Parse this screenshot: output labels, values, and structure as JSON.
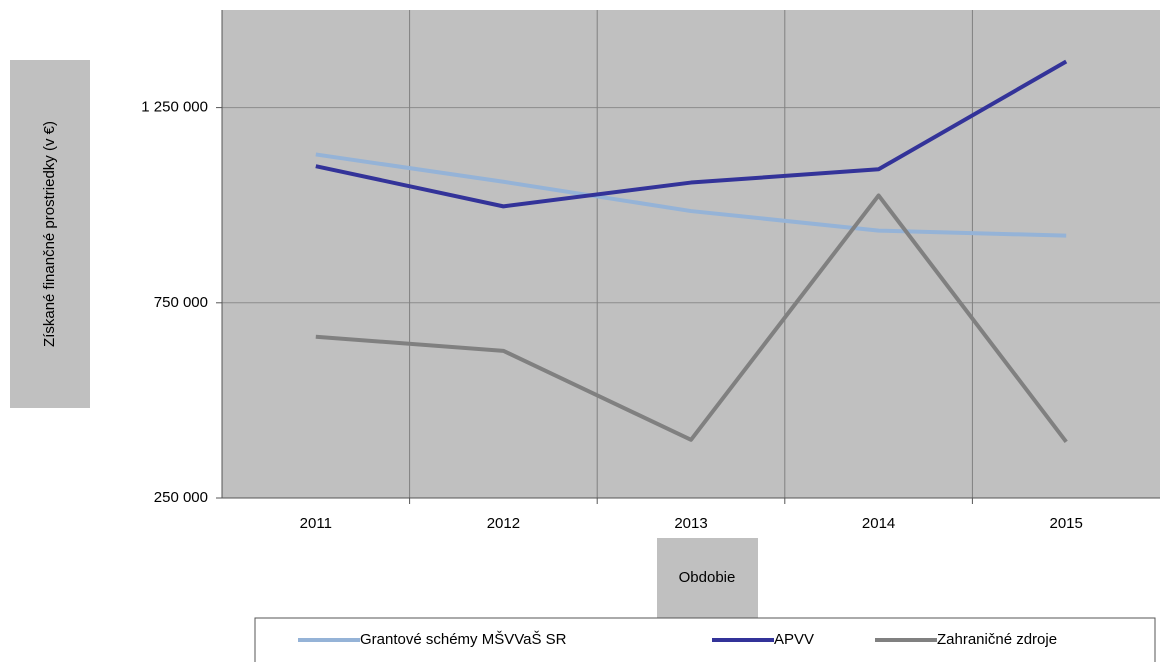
{
  "chart_data": {
    "type": "line",
    "y_label": "Získané  finančné  prostriedky  (v €)",
    "x_label": "Obdobie",
    "categories": [
      "2011",
      "2012",
      "2013",
      "2014",
      "2015"
    ],
    "series": [
      {
        "name": "Grantové schémy MŠVVaŠ SR",
        "color": "#95b3d7",
        "values": [
          1130000,
          1060000,
          985000,
          935000,
          922000
        ]
      },
      {
        "name": "APVV",
        "color": "#333399",
        "values": [
          1100000,
          997000,
          1058000,
          1092000,
          1368000
        ]
      },
      {
        "name": "Zahraničné zdroje",
        "color": "#808080",
        "values": [
          663000,
          627000,
          399000,
          1025000,
          394000
        ]
      }
    ],
    "ylim": [
      250000,
      1500000
    ],
    "yticks": [
      {
        "value": 250000,
        "label": "250 000"
      },
      {
        "value": 750000,
        "label": "750 000"
      },
      {
        "value": 1250000,
        "label": "1 250 000"
      }
    ],
    "grid": true,
    "legend": "bottom"
  }
}
